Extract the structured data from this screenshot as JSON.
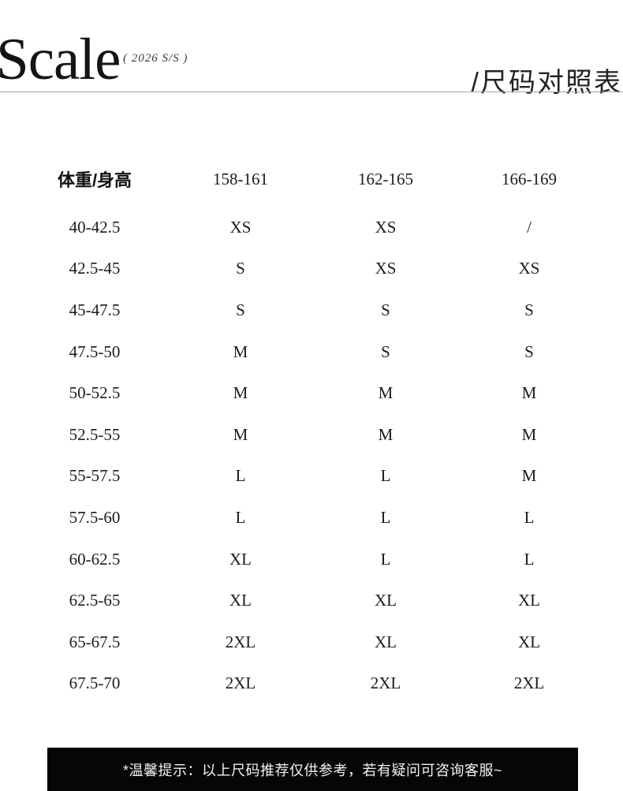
{
  "header": {
    "brand_title": "Scale",
    "season": "( 2026 S/S )",
    "page_title": "/尺码对照表"
  },
  "size_chart": {
    "columns": [
      "体重/身高",
      "158-161",
      "162-165",
      "166-169"
    ],
    "rows": [
      {
        "weight": "40-42.5",
        "sizes": [
          "XS",
          "XS",
          "/"
        ]
      },
      {
        "weight": "42.5-45",
        "sizes": [
          "S",
          "XS",
          "XS"
        ]
      },
      {
        "weight": "45-47.5",
        "sizes": [
          "S",
          "S",
          "S"
        ]
      },
      {
        "weight": "47.5-50",
        "sizes": [
          "M",
          "S",
          "S"
        ]
      },
      {
        "weight": "50-52.5",
        "sizes": [
          "M",
          "M",
          "M"
        ]
      },
      {
        "weight": "52.5-55",
        "sizes": [
          "M",
          "M",
          "M"
        ]
      },
      {
        "weight": "55-57.5",
        "sizes": [
          "L",
          "L",
          "M"
        ]
      },
      {
        "weight": "57.5-60",
        "sizes": [
          "L",
          "L",
          "L"
        ]
      },
      {
        "weight": "60-62.5",
        "sizes": [
          "XL",
          "L",
          "L"
        ]
      },
      {
        "weight": "62.5-65",
        "sizes": [
          "XL",
          "XL",
          "XL"
        ]
      },
      {
        "weight": "65-67.5",
        "sizes": [
          "2XL",
          "XL",
          "XL"
        ]
      },
      {
        "weight": "67.5-70",
        "sizes": [
          "2XL",
          "2XL",
          "2XL"
        ]
      }
    ]
  },
  "footer": {
    "note": "*温馨提示：以上尺码推荐仅供参考，若有疑问可咨询客服~"
  },
  "colors": {
    "text": "#1c1c1c",
    "rule": "#a6a6a6",
    "footer_bg": "#060606",
    "footer_text": "#f2f2f2"
  }
}
